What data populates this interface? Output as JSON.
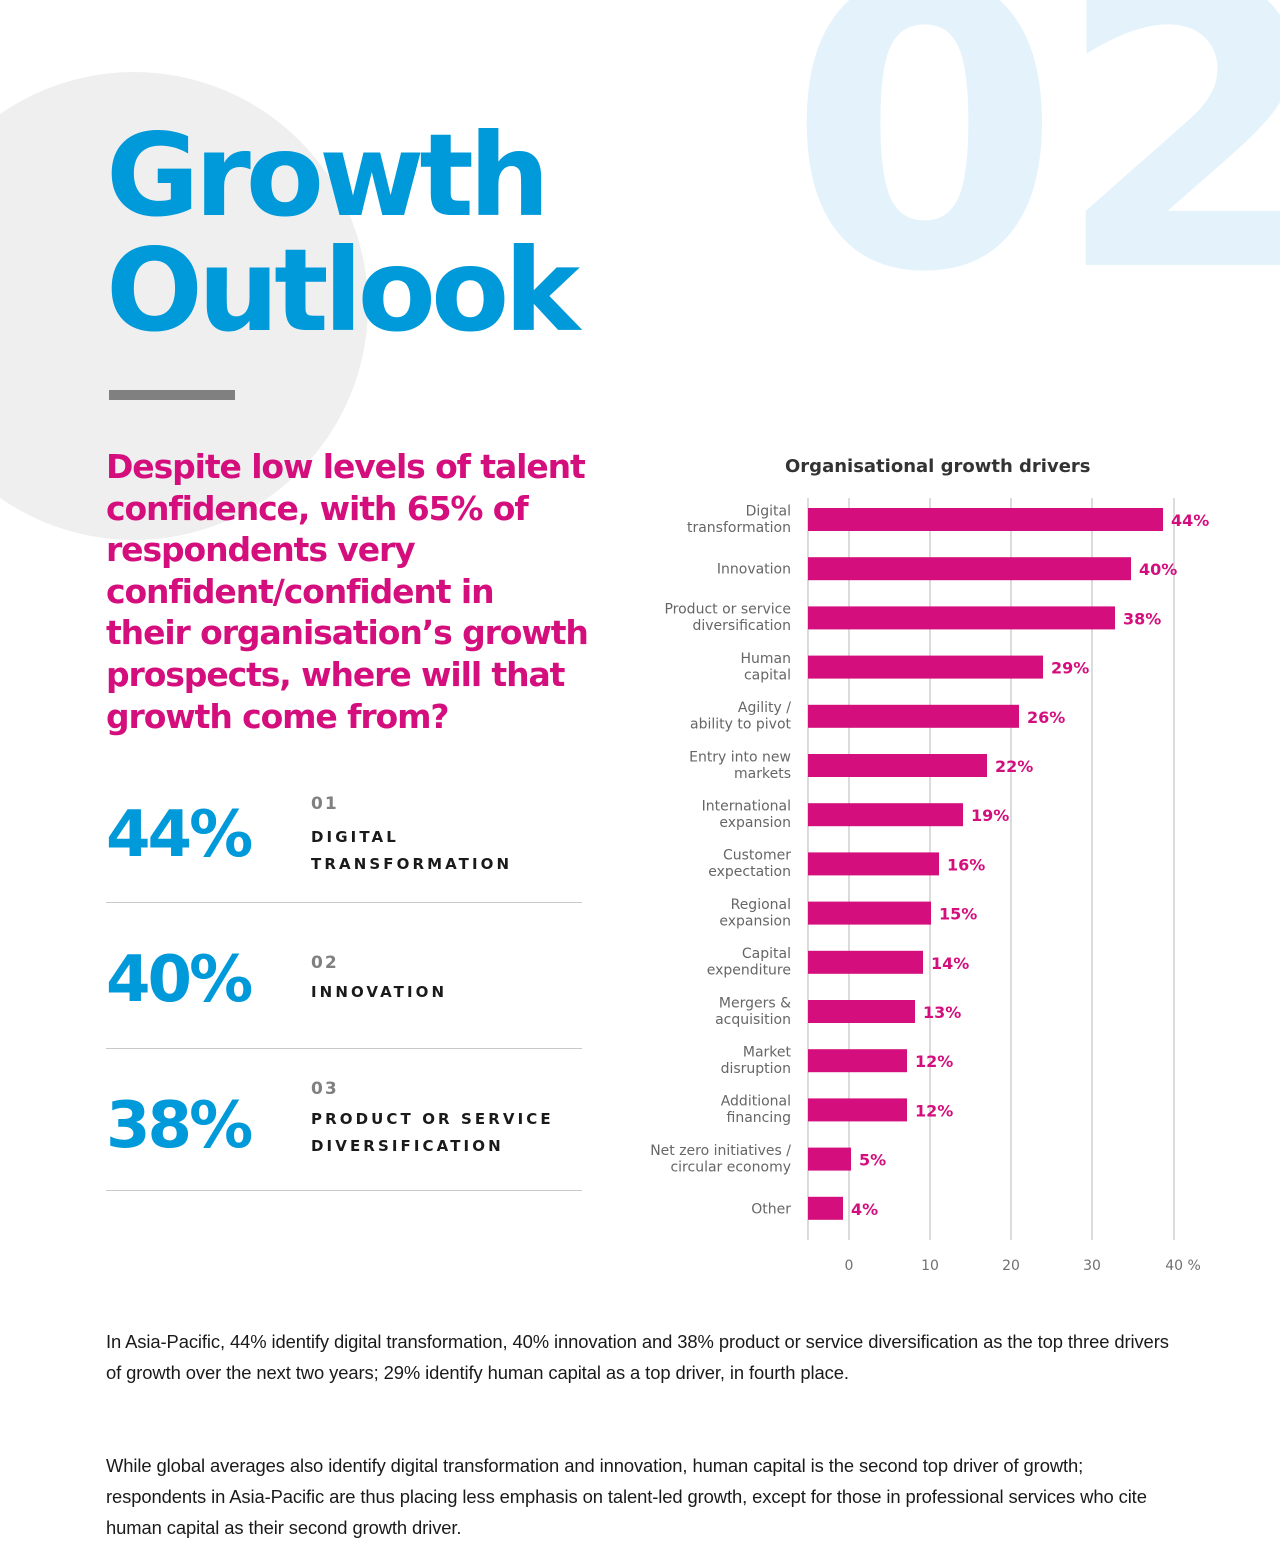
{
  "page": {
    "section_number": "02",
    "headline": [
      "Growth",
      "Outlook"
    ],
    "intro_lines": [
      "Despite low levels of talent",
      "confidence, with 65% of",
      "respondents very",
      "confident/confident in",
      "their organisation’s growth",
      "prospects, where will that",
      "growth come from?"
    ],
    "stats": [
      {
        "value": "44%",
        "rank": "01",
        "label_lines": [
          "DIGITAL",
          "TRANSFORMATION"
        ]
      },
      {
        "value": "40%",
        "rank": "02",
        "label_lines": [
          "INNOVATION"
        ]
      },
      {
        "value": "38%",
        "rank": "03",
        "label_lines": [
          "PRODUCT OR SERVICE",
          "DIVERSIFICATION"
        ]
      }
    ],
    "body_paragraphs": [
      "In Asia-Pacific, 44% identify digital transformation, 40% innovation and 38% product or service diversification as the top three drivers of growth over the next two years; 29% identify human capital as a top driver, in fourth place.",
      "While global averages also identify digital transformation and innovation, human capital is the second top driver of growth; respondents in Asia-Pacific are thus placing less emphasis on talent-led growth, except for those in professional services who cite human capital as their second growth driver."
    ],
    "colors": {
      "brand_blue": "#0099d9",
      "brand_magenta": "#d40f7d",
      "watermark": "#e4f3fb",
      "circle": "#efefef"
    }
  },
  "chart_data": {
    "type": "bar",
    "orientation": "horizontal",
    "title": "Organisational growth drivers",
    "categories": [
      [
        "Digital",
        "transformation"
      ],
      [
        "Innovation"
      ],
      [
        "Product or service",
        "diversification"
      ],
      [
        "Human",
        "capital"
      ],
      [
        "Agility /",
        "ability to pivot"
      ],
      [
        "Entry into new",
        "markets"
      ],
      [
        "International",
        "expansion"
      ],
      [
        "Customer",
        "expectation"
      ],
      [
        "Regional",
        "expansion"
      ],
      [
        "Capital",
        "expenditure"
      ],
      [
        "Mergers &",
        "acquisition"
      ],
      [
        "Market",
        "disruption"
      ],
      [
        "Additional",
        "financing"
      ],
      [
        "Net zero initiatives /",
        "circular economy"
      ],
      [
        "Other"
      ]
    ],
    "values": [
      44,
      40,
      38,
      29,
      26,
      22,
      19,
      16,
      15,
      14,
      13,
      12,
      12,
      5,
      4
    ],
    "value_labels": [
      "44%",
      "40%",
      "38%",
      "29%",
      "26%",
      "22%",
      "19%",
      "16%",
      "15%",
      "14%",
      "13%",
      "12%",
      "12%",
      "5%",
      "4%"
    ],
    "x_ticks": [
      "0",
      "10",
      "20",
      "30",
      "40 %"
    ],
    "xlim": [
      0,
      40
    ],
    "xlabel": "",
    "ylabel": "",
    "grid": true,
    "bar_color": "#d40f7d",
    "legend": "none"
  }
}
